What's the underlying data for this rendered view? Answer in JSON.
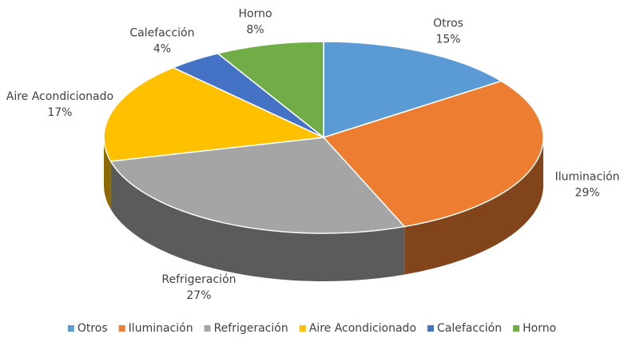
{
  "chart_data": {
    "type": "pie3d",
    "categories": [
      "Otros",
      "Iluminación",
      "Refrigeración",
      "Aire Acondicionado",
      "Calefacción",
      "Horno"
    ],
    "values": [
      15,
      29,
      27,
      17,
      4,
      8
    ],
    "value_labels": [
      "15%",
      "29%",
      "27%",
      "17%",
      "4%",
      "8%"
    ],
    "colors": [
      "#5B9BD5",
      "#ED7D31",
      "#A5A5A5",
      "#FFC000",
      "#4472C4",
      "#70AD47"
    ],
    "legend": "bottom"
  }
}
